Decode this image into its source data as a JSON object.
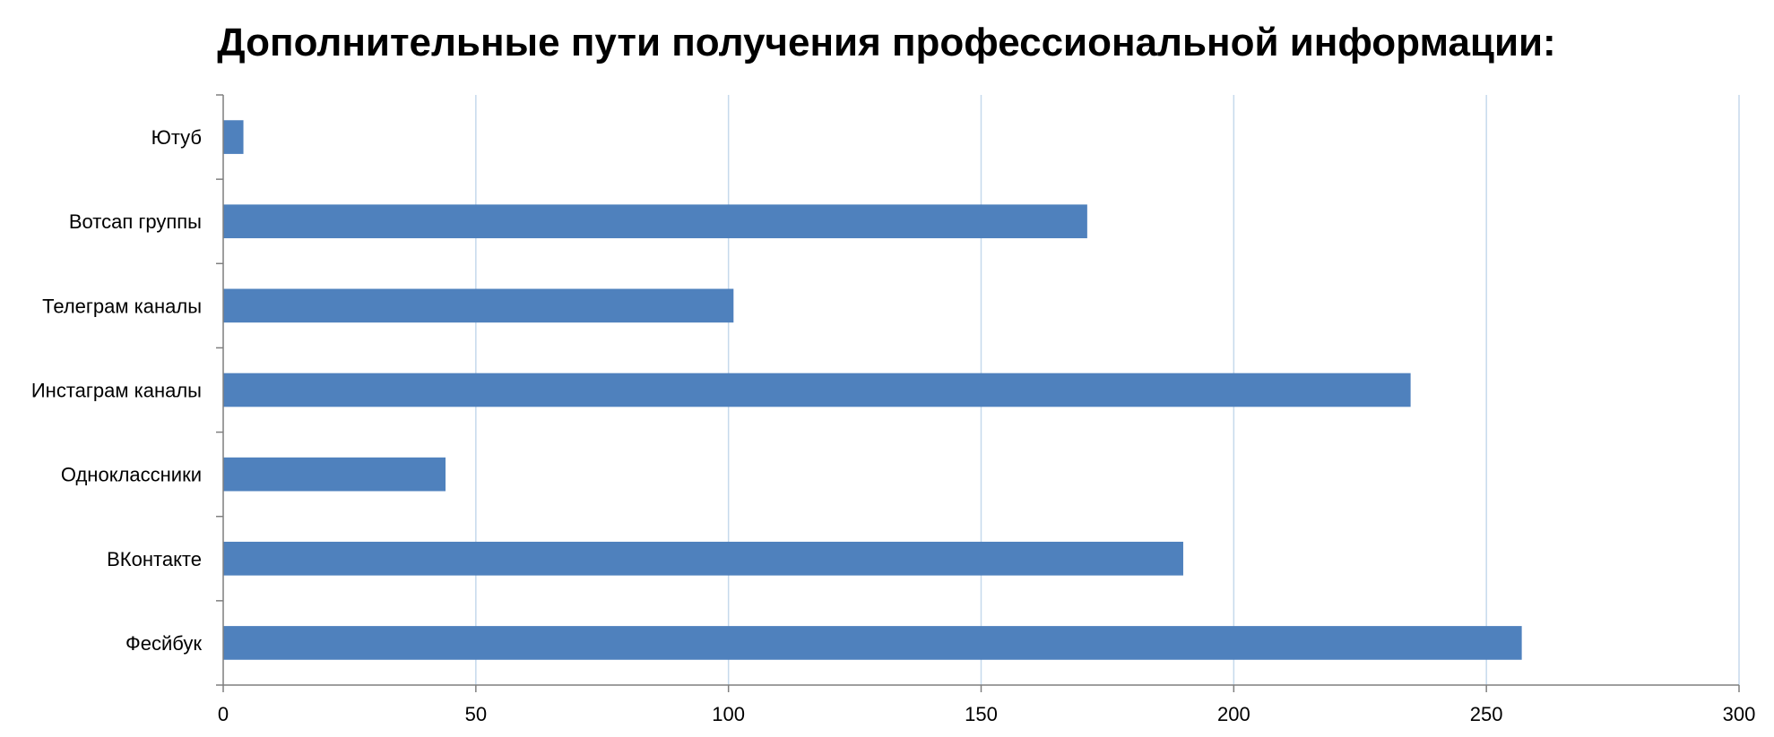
{
  "chart_data": {
    "type": "bar",
    "orientation": "horizontal",
    "title": "Дополнительные пути получения профессиональной информации:",
    "categories": [
      "Ютуб",
      "Вотсап группы",
      "Телеграм каналы",
      "Инстаграм каналы",
      "Одноклассники",
      "ВКонтакте",
      "Фесйбук"
    ],
    "values": [
      4,
      171,
      101,
      235,
      44,
      190,
      257
    ],
    "xlim": [
      0,
      300
    ],
    "x_ticks": [
      "0",
      "50",
      "100",
      "150",
      "200",
      "250",
      "300"
    ],
    "xlabel": "",
    "ylabel": "",
    "grid": "vertical",
    "legend": "none"
  },
  "colors": {
    "bar": "#4f81bd",
    "grid": "#c6d9ec",
    "axis": "#7f7f7f"
  }
}
